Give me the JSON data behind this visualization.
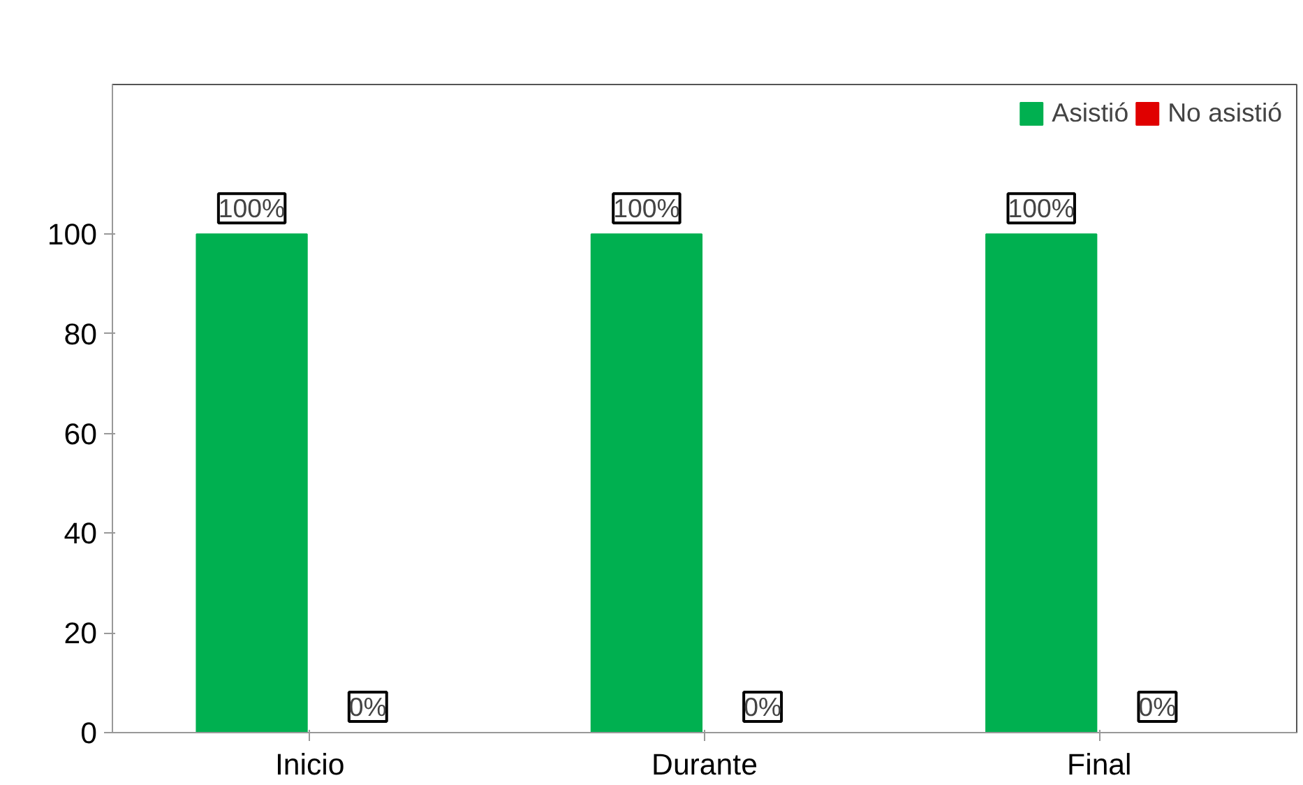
{
  "chart_data": {
    "type": "bar",
    "categories": [
      "Inicio",
      "Durante",
      "Final"
    ],
    "series": [
      {
        "name": "Asistió",
        "color": "#00b050",
        "values": [
          100,
          100,
          100
        ],
        "value_labels": [
          "100%",
          "100%",
          "100%"
        ]
      },
      {
        "name": "No asistió",
        "color": "#e00000",
        "values": [
          0,
          0,
          0
        ],
        "value_labels": [
          "0%",
          "0%",
          "0%"
        ]
      }
    ],
    "ylim": [
      0,
      130
    ],
    "yticks": [
      0,
      20,
      40,
      60,
      80,
      100
    ],
    "grid": false,
    "legend": "top right"
  }
}
